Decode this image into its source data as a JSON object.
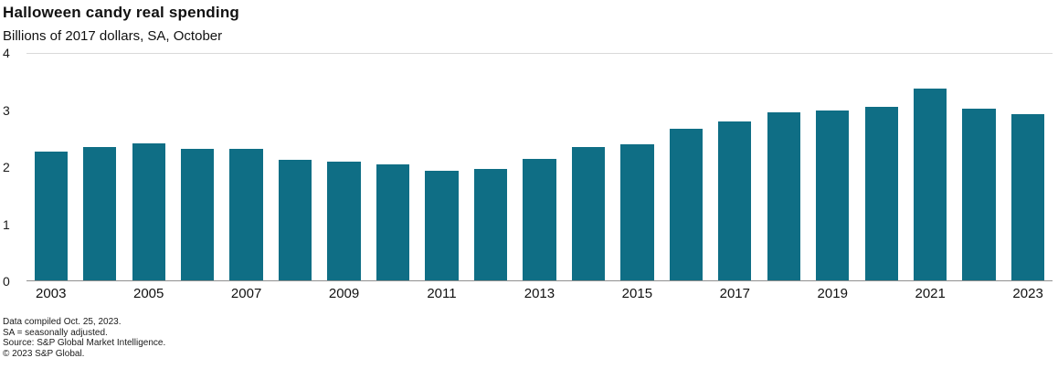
{
  "chart_data": {
    "type": "bar",
    "title": "Halloween candy real spending",
    "subtitle": "Billions of 2017 dollars, SA, October",
    "categories": [
      "2003",
      "2004",
      "2005",
      "2006",
      "2007",
      "2008",
      "2009",
      "2010",
      "2011",
      "2012",
      "2013",
      "2014",
      "2015",
      "2016",
      "2017",
      "2018",
      "2019",
      "2020",
      "2021",
      "2022",
      "2023"
    ],
    "values": [
      2.28,
      2.35,
      2.42,
      2.33,
      2.33,
      2.13,
      2.1,
      2.05,
      1.93,
      1.97,
      2.15,
      2.36,
      2.4,
      2.67,
      2.81,
      2.96,
      3.0,
      3.06,
      3.38,
      3.03,
      2.93
    ],
    "x_tick_labels": [
      "2003",
      "2005",
      "2007",
      "2009",
      "2011",
      "2013",
      "2015",
      "2017",
      "2019",
      "2021",
      "2023"
    ],
    "xlabel": "",
    "ylabel": "",
    "ylim": [
      0,
      4
    ],
    "yticks": [
      0,
      1,
      2,
      3,
      4
    ],
    "bar_color": "#0f6e85",
    "grid": "top boundary line and zero baseline only",
    "legend": "none"
  },
  "footnotes": [
    "Data compiled Oct. 25, 2023.",
    "SA = seasonally adjusted.",
    "Source: S&P Global Market Intelligence.",
    "© 2023 S&P Global."
  ]
}
